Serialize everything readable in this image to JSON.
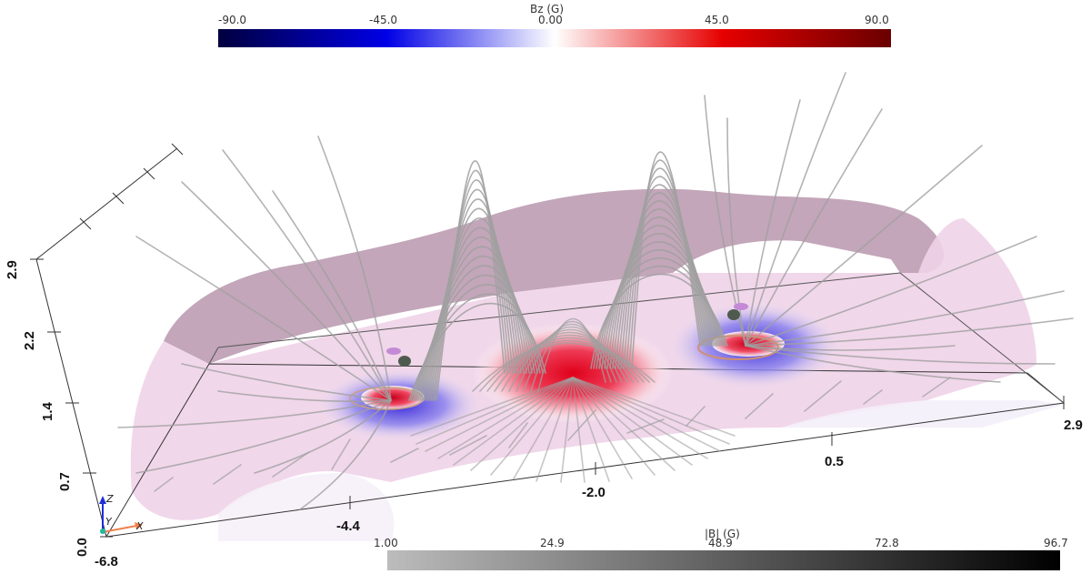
{
  "colorbar_bz": {
    "title": "Bz (G)",
    "ticks": [
      "-90.0",
      "-45.0",
      "0.00",
      "45.0",
      "90.0"
    ],
    "stops": [
      "#00003f",
      "#0000e6",
      "#ffffff",
      "#e60000",
      "#6a0000"
    ]
  },
  "colorbar_b": {
    "title": "|B| (G)",
    "ticks": [
      "1.00",
      "24.9",
      "48.9",
      "72.8",
      "96.7"
    ],
    "stops": [
      "#bcbcbc",
      "#000000"
    ]
  },
  "axes": {
    "x_ticks": [
      "-6.8",
      "-4.4",
      "-2.0",
      "0.5",
      "2.9"
    ],
    "z_ticks": [
      "0.0",
      "0.7",
      "1.4",
      "2.2",
      "2.9"
    ],
    "orientation": {
      "x": "X",
      "y": "Y",
      "z": "Z"
    }
  },
  "colors": {
    "surface": "#d9b7cf",
    "field_line": "#a0a0a0",
    "axis_x": "#f07f4b",
    "axis_y": "#1abc9c",
    "axis_z": "#1f2fd6"
  }
}
